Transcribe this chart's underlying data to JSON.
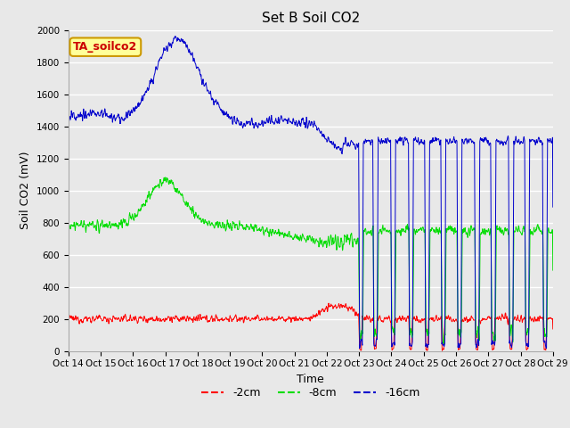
{
  "title": "Set B Soil CO2",
  "ylabel": "Soil CO2 (mV)",
  "xlabel": "Time",
  "legend_label": "TA_soilco2",
  "series": {
    "-2cm": {
      "color": "#ff0000",
      "label": "-2cm"
    },
    "-8cm": {
      "color": "#00dd00",
      "label": "-8cm"
    },
    "-16cm": {
      "color": "#0000cc",
      "label": "-16cm"
    }
  },
  "ylim": [
    0,
    2000
  ],
  "plot_bg_color": "#e8e8e8",
  "fig_bg_color": "#e8e8e8",
  "grid_color": "#ffffff",
  "title_fontsize": 11,
  "axis_label_fontsize": 9,
  "tick_label_fontsize": 7.5,
  "legend_box_color": "#ffff99",
  "legend_box_edge": "#cc9900",
  "legend_text_color": "#cc0000"
}
